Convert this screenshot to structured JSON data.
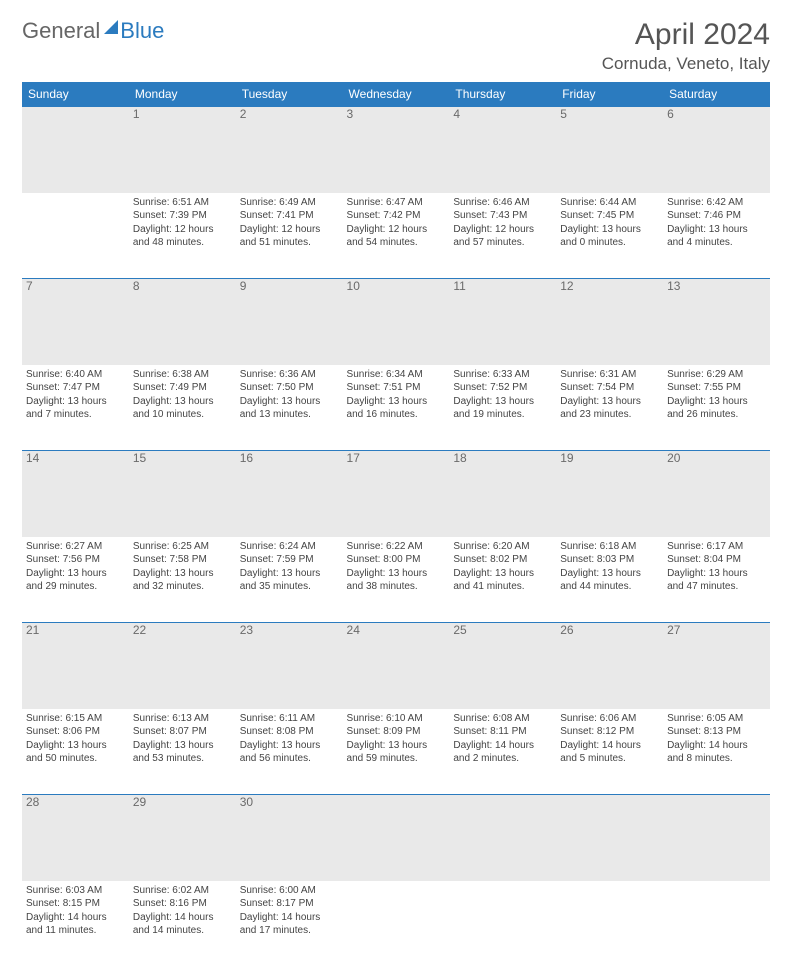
{
  "brand": {
    "part1": "General",
    "part2": "Blue"
  },
  "header": {
    "month": "April 2024",
    "location": "Cornuda, Veneto, Italy"
  },
  "colors": {
    "accent": "#2b7bbf",
    "dayband": "#e9e9e9",
    "text": "#444444",
    "header_text": "#ffffff"
  },
  "calendar": {
    "day_names": [
      "Sunday",
      "Monday",
      "Tuesday",
      "Wednesday",
      "Thursday",
      "Friday",
      "Saturday"
    ],
    "weeks": [
      {
        "nums": [
          "",
          "1",
          "2",
          "3",
          "4",
          "5",
          "6"
        ],
        "cells": [
          null,
          {
            "sunrise": "6:51 AM",
            "sunset": "7:39 PM",
            "daylight": "12 hours and 48 minutes."
          },
          {
            "sunrise": "6:49 AM",
            "sunset": "7:41 PM",
            "daylight": "12 hours and 51 minutes."
          },
          {
            "sunrise": "6:47 AM",
            "sunset": "7:42 PM",
            "daylight": "12 hours and 54 minutes."
          },
          {
            "sunrise": "6:46 AM",
            "sunset": "7:43 PM",
            "daylight": "12 hours and 57 minutes."
          },
          {
            "sunrise": "6:44 AM",
            "sunset": "7:45 PM",
            "daylight": "13 hours and 0 minutes."
          },
          {
            "sunrise": "6:42 AM",
            "sunset": "7:46 PM",
            "daylight": "13 hours and 4 minutes."
          }
        ]
      },
      {
        "nums": [
          "7",
          "8",
          "9",
          "10",
          "11",
          "12",
          "13"
        ],
        "cells": [
          {
            "sunrise": "6:40 AM",
            "sunset": "7:47 PM",
            "daylight": "13 hours and 7 minutes."
          },
          {
            "sunrise": "6:38 AM",
            "sunset": "7:49 PM",
            "daylight": "13 hours and 10 minutes."
          },
          {
            "sunrise": "6:36 AM",
            "sunset": "7:50 PM",
            "daylight": "13 hours and 13 minutes."
          },
          {
            "sunrise": "6:34 AM",
            "sunset": "7:51 PM",
            "daylight": "13 hours and 16 minutes."
          },
          {
            "sunrise": "6:33 AM",
            "sunset": "7:52 PM",
            "daylight": "13 hours and 19 minutes."
          },
          {
            "sunrise": "6:31 AM",
            "sunset": "7:54 PM",
            "daylight": "13 hours and 23 minutes."
          },
          {
            "sunrise": "6:29 AM",
            "sunset": "7:55 PM",
            "daylight": "13 hours and 26 minutes."
          }
        ]
      },
      {
        "nums": [
          "14",
          "15",
          "16",
          "17",
          "18",
          "19",
          "20"
        ],
        "cells": [
          {
            "sunrise": "6:27 AM",
            "sunset": "7:56 PM",
            "daylight": "13 hours and 29 minutes."
          },
          {
            "sunrise": "6:25 AM",
            "sunset": "7:58 PM",
            "daylight": "13 hours and 32 minutes."
          },
          {
            "sunrise": "6:24 AM",
            "sunset": "7:59 PM",
            "daylight": "13 hours and 35 minutes."
          },
          {
            "sunrise": "6:22 AM",
            "sunset": "8:00 PM",
            "daylight": "13 hours and 38 minutes."
          },
          {
            "sunrise": "6:20 AM",
            "sunset": "8:02 PM",
            "daylight": "13 hours and 41 minutes."
          },
          {
            "sunrise": "6:18 AM",
            "sunset": "8:03 PM",
            "daylight": "13 hours and 44 minutes."
          },
          {
            "sunrise": "6:17 AM",
            "sunset": "8:04 PM",
            "daylight": "13 hours and 47 minutes."
          }
        ]
      },
      {
        "nums": [
          "21",
          "22",
          "23",
          "24",
          "25",
          "26",
          "27"
        ],
        "cells": [
          {
            "sunrise": "6:15 AM",
            "sunset": "8:06 PM",
            "daylight": "13 hours and 50 minutes."
          },
          {
            "sunrise": "6:13 AM",
            "sunset": "8:07 PM",
            "daylight": "13 hours and 53 minutes."
          },
          {
            "sunrise": "6:11 AM",
            "sunset": "8:08 PM",
            "daylight": "13 hours and 56 minutes."
          },
          {
            "sunrise": "6:10 AM",
            "sunset": "8:09 PM",
            "daylight": "13 hours and 59 minutes."
          },
          {
            "sunrise": "6:08 AM",
            "sunset": "8:11 PM",
            "daylight": "14 hours and 2 minutes."
          },
          {
            "sunrise": "6:06 AM",
            "sunset": "8:12 PM",
            "daylight": "14 hours and 5 minutes."
          },
          {
            "sunrise": "6:05 AM",
            "sunset": "8:13 PM",
            "daylight": "14 hours and 8 minutes."
          }
        ]
      },
      {
        "nums": [
          "28",
          "29",
          "30",
          "",
          "",
          "",
          ""
        ],
        "cells": [
          {
            "sunrise": "6:03 AM",
            "sunset": "8:15 PM",
            "daylight": "14 hours and 11 minutes."
          },
          {
            "sunrise": "6:02 AM",
            "sunset": "8:16 PM",
            "daylight": "14 hours and 14 minutes."
          },
          {
            "sunrise": "6:00 AM",
            "sunset": "8:17 PM",
            "daylight": "14 hours and 17 minutes."
          },
          null,
          null,
          null,
          null
        ]
      }
    ]
  },
  "labels": {
    "sunrise": "Sunrise:",
    "sunset": "Sunset:",
    "daylight": "Daylight:"
  }
}
